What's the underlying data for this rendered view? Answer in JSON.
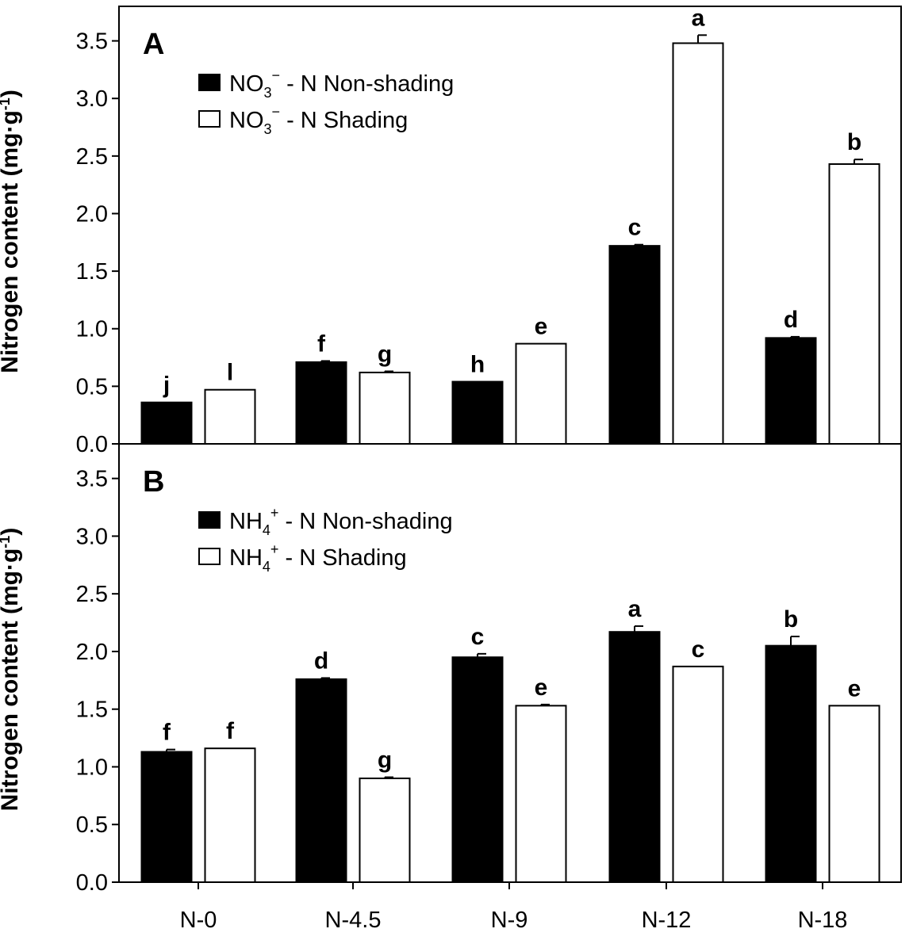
{
  "chart_data": [
    {
      "type": "bar",
      "panel_label": "A",
      "ylabel": "Nitrogen content (mg·g",
      "ylabel_sup": "-1",
      "ylabel_end": ")",
      "ylim": [
        0,
        3.8
      ],
      "yticks": [
        "0.0",
        "0.5",
        "1.0",
        "1.5",
        "2.0",
        "2.5",
        "3.0",
        "3.5"
      ],
      "categories": [
        "N-0",
        "N-4.5",
        "N-9",
        "N-12",
        "N-18"
      ],
      "legend": [
        {
          "prefix": "NO",
          "sub": "3",
          "sup": "−",
          "suffix": " - N Non-shading"
        },
        {
          "prefix": "NO",
          "sub": "3",
          "sup": "−",
          "suffix": " - N Shading"
        }
      ],
      "series": [
        {
          "name": "NO3- - N Non-shading",
          "fill": "#000000",
          "values": [
            0.36,
            0.71,
            0.54,
            1.72,
            0.92
          ],
          "errors": [
            0.0,
            0.01,
            0.0,
            0.01,
            0.01
          ],
          "sig": [
            "j",
            "f",
            "h",
            "c",
            "d"
          ]
        },
        {
          "name": "NO3- - N Shading",
          "fill": "#ffffff",
          "values": [
            0.47,
            0.62,
            0.87,
            3.48,
            2.43
          ],
          "errors": [
            0.0,
            0.01,
            0.0,
            0.07,
            0.04
          ],
          "sig": [
            "l",
            "g",
            "e",
            "a",
            "b"
          ]
        }
      ]
    },
    {
      "type": "bar",
      "panel_label": "B",
      "ylabel": "Nitrogen content (mg·g",
      "ylabel_sup": "-1",
      "ylabel_end": ")",
      "xlabels_shown": true,
      "ylim": [
        0,
        3.8
      ],
      "yticks": [
        "0.0",
        "0.5",
        "1.0",
        "1.5",
        "2.0",
        "2.5",
        "3.0",
        "3.5"
      ],
      "categories": [
        "N-0",
        "N-4.5",
        "N-9",
        "N-12",
        "N-18"
      ],
      "legend": [
        {
          "prefix": "NH",
          "sub": "4",
          "sup": "+",
          "suffix": " - N Non-shading"
        },
        {
          "prefix": "NH",
          "sub": "4",
          "sup": "+",
          "suffix": " - N Shading"
        }
      ],
      "series": [
        {
          "name": "NH4+ - N Non-shading",
          "fill": "#000000",
          "values": [
            1.13,
            1.76,
            1.95,
            2.17,
            2.05
          ],
          "errors": [
            0.02,
            0.01,
            0.03,
            0.05,
            0.08
          ],
          "sig": [
            "f",
            "d",
            "c",
            "a",
            "b"
          ]
        },
        {
          "name": "NH4+ - N Shading",
          "fill": "#ffffff",
          "values": [
            1.16,
            0.9,
            1.53,
            1.87,
            1.53
          ],
          "errors": [
            0.0,
            0.01,
            0.01,
            0.0,
            0.0
          ],
          "sig": [
            "f",
            "g",
            "e",
            "c",
            "e"
          ]
        }
      ]
    }
  ]
}
